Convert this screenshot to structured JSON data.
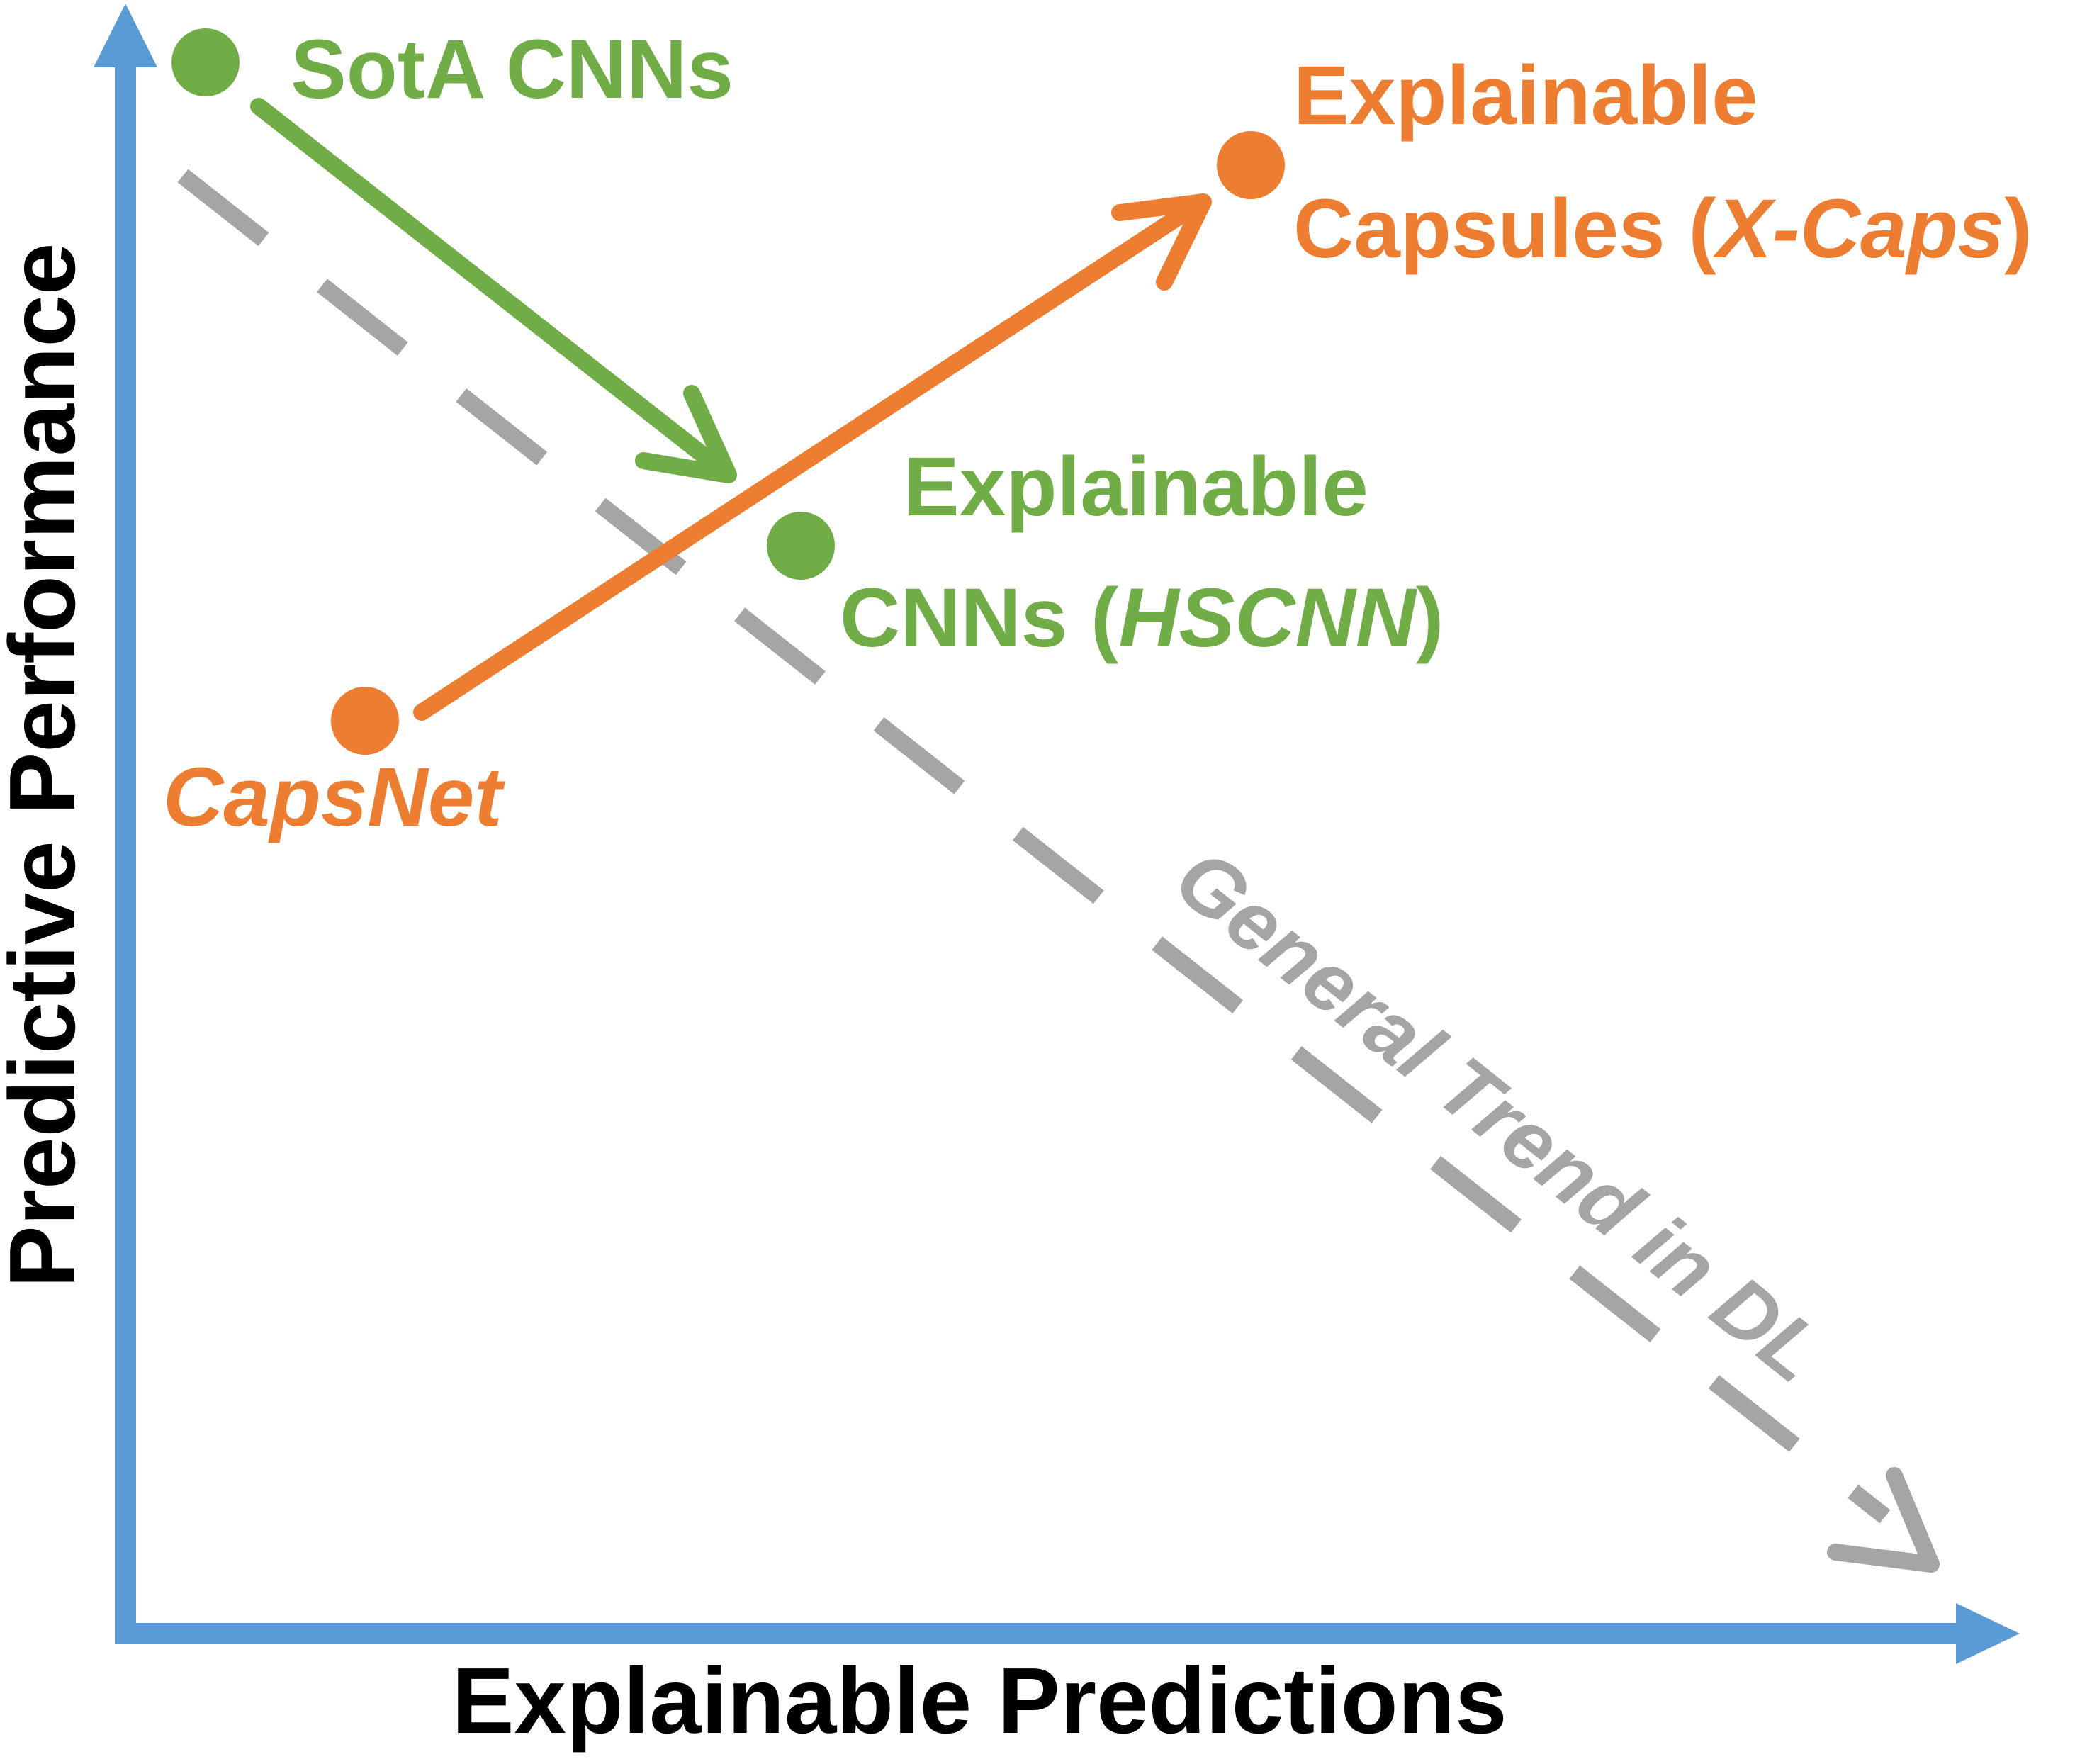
{
  "axes": {
    "x_label": "Explainable Predictions",
    "y_label": "Predictive Performance",
    "color": "#5B9BD5"
  },
  "colors": {
    "green": "#70AD47",
    "orange": "#ED7D31",
    "gray": "#A5A5A5",
    "black": "#000000"
  },
  "labels": {
    "sota": "SotA CNNs",
    "xcaps_line1": "Explainable",
    "xcaps_line2_prefix": "Capsules (",
    "xcaps_line2_italic": "X-Caps",
    "xcaps_line2_suffix": ")",
    "hscnn_line1": "Explainable",
    "hscnn_line2_prefix": "CNNs (",
    "hscnn_line2_italic": "HSCNN",
    "hscnn_line2_suffix": ")",
    "capsnet": "CapsNet",
    "trend": "General Trend in DL"
  }
}
